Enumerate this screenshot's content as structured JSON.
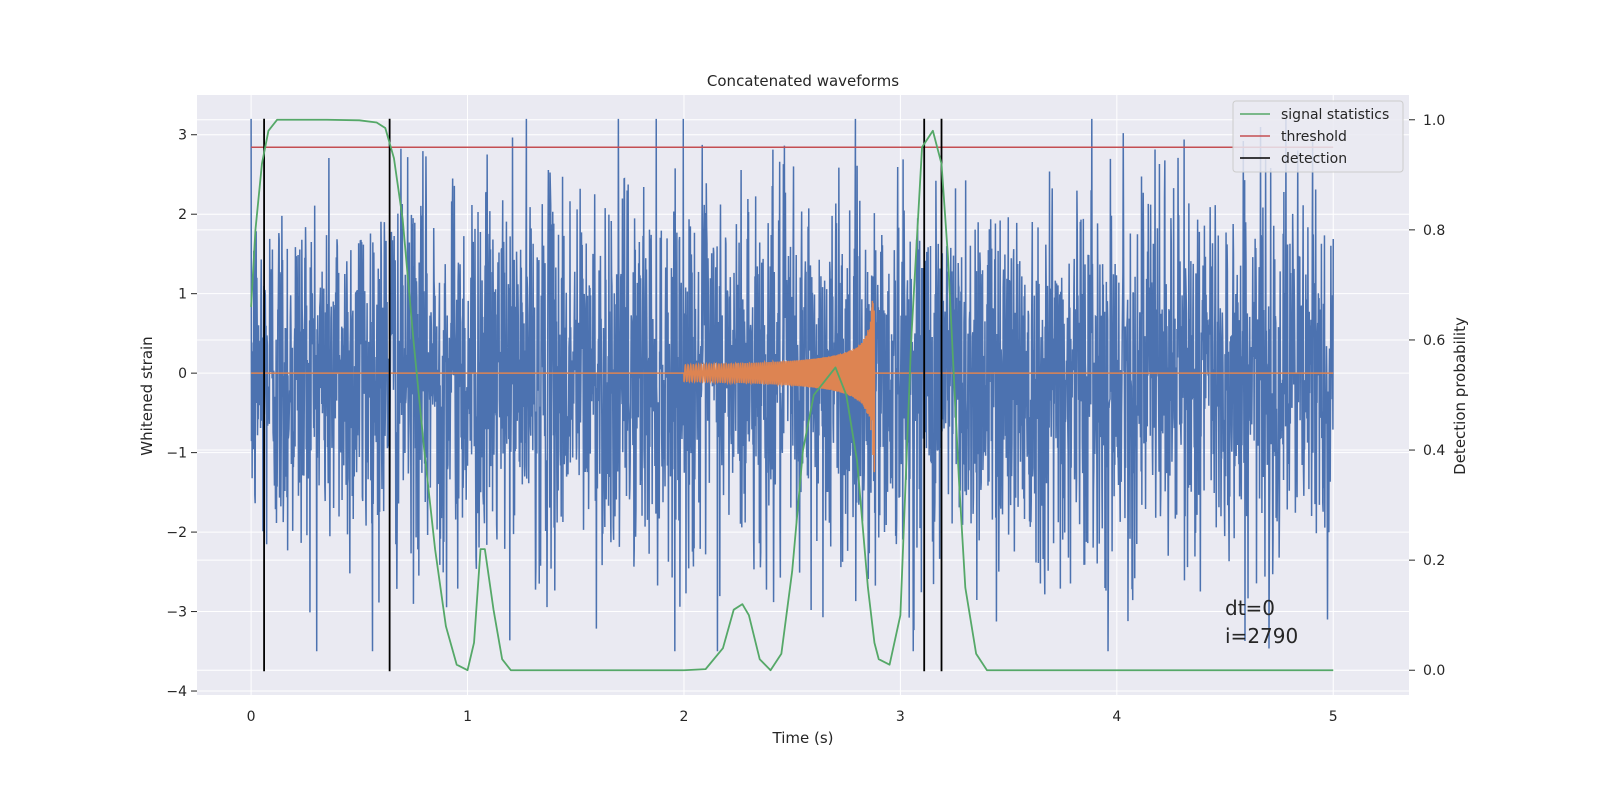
{
  "chart_data": {
    "type": "line",
    "title": "Concatenated waveforms",
    "xlabel": "Time (s)",
    "ylabel": "Whitened strain",
    "y2label": "Detection probability",
    "xlim": [
      -0.25,
      5.35
    ],
    "ylim": [
      -4.05,
      3.5
    ],
    "y2lim": [
      -0.045,
      1.045
    ],
    "xticks": [
      0,
      1,
      2,
      3,
      4,
      5
    ],
    "xtick_labels": [
      "0",
      "1",
      "2",
      "3",
      "4",
      "5"
    ],
    "yticks": [
      -4,
      -3,
      -2,
      -1,
      0,
      1,
      2,
      3
    ],
    "ytick_labels": [
      "−4",
      "−3",
      "−2",
      "−1",
      "0",
      "1",
      "2",
      "3"
    ],
    "y2ticks": [
      0.0,
      0.2,
      0.4,
      0.6,
      0.8,
      1.0
    ],
    "y2tick_labels": [
      "0.0",
      "0.2",
      "0.4",
      "0.6",
      "0.8",
      "1.0"
    ],
    "grid": true,
    "legend_position": "top-right",
    "colors": {
      "strain": "#4c72b0",
      "template": "#dd8452",
      "signal": "#55a868",
      "threshold": "#c44e52",
      "detection": "#000000",
      "background": "#eaeaf2",
      "grid": "#ffffff"
    },
    "legend": [
      {
        "label": "signal statistics",
        "color": "#55a868"
      },
      {
        "label": "threshold",
        "color": "#c44e52"
      },
      {
        "label": "detection",
        "color": "#000000"
      }
    ],
    "strain_noise": {
      "x_start": 0,
      "x_end": 5,
      "typical_amplitude": 1.3,
      "max": 3.2,
      "min": -3.5
    },
    "template_chirp": {
      "x_start": 2.0,
      "x_end": 2.88,
      "peak_amplitude": 1.25
    },
    "threshold": {
      "x_start": 0,
      "x_end": 5,
      "value": 0.95
    },
    "detections": [
      0.06,
      0.64,
      3.11,
      3.19
    ],
    "signal_statistics": {
      "x": [
        0.0,
        0.02,
        0.05,
        0.08,
        0.12,
        0.2,
        0.35,
        0.5,
        0.58,
        0.62,
        0.66,
        0.7,
        0.75,
        0.8,
        0.85,
        0.9,
        0.95,
        1.0,
        1.03,
        1.06,
        1.08,
        1.12,
        1.16,
        1.2,
        1.3,
        1.6,
        2.0,
        2.1,
        2.18,
        2.23,
        2.27,
        2.3,
        2.35,
        2.4,
        2.45,
        2.5,
        2.55,
        2.6,
        2.7,
        2.75,
        2.8,
        2.85,
        2.88,
        2.9,
        2.95,
        3.0,
        3.05,
        3.1,
        3.15,
        3.19,
        3.22,
        3.27,
        3.3,
        3.35,
        3.4,
        3.5,
        4.0,
        4.5,
        5.0
      ],
      "y": [
        0.66,
        0.8,
        0.92,
        0.98,
        1.0,
        1.0,
        1.0,
        0.999,
        0.995,
        0.985,
        0.93,
        0.82,
        0.6,
        0.4,
        0.22,
        0.08,
        0.01,
        0.0,
        0.05,
        0.22,
        0.22,
        0.11,
        0.02,
        0.0,
        0.0,
        0.0,
        0.0,
        0.002,
        0.04,
        0.11,
        0.12,
        0.1,
        0.02,
        0.0,
        0.03,
        0.18,
        0.4,
        0.5,
        0.55,
        0.5,
        0.38,
        0.15,
        0.05,
        0.02,
        0.01,
        0.1,
        0.6,
        0.95,
        0.98,
        0.92,
        0.75,
        0.35,
        0.15,
        0.03,
        0.0,
        0.0,
        0.0,
        0.0,
        0.0
      ]
    },
    "annotations": [
      "dt=0",
      "i=2790"
    ]
  }
}
